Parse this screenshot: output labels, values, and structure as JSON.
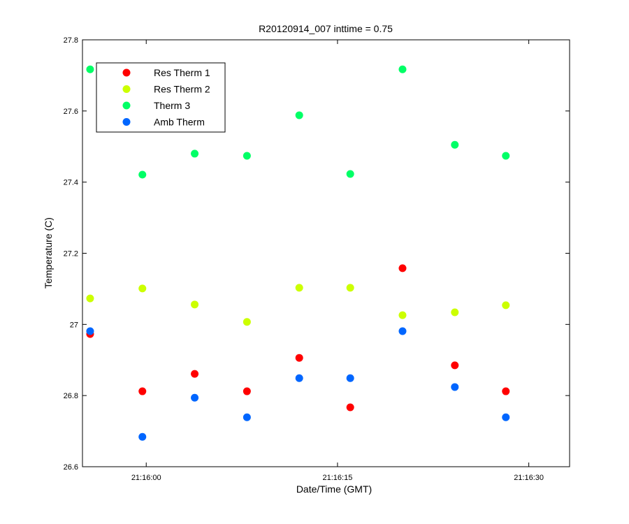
{
  "chart_data": {
    "type": "scatter",
    "title": "R20120914_007 inttime = 0.75",
    "x_label": "Date/Time (GMT)",
    "y_label": "Temperature (C)",
    "x": [
      "21:15:55.6",
      "21:15:59.7",
      "21:16:03.8",
      "21:16:07.9",
      "21:16:12.0",
      "21:16:16.0",
      "21:16:20.1",
      "21:16:24.2",
      "21:16:28.2"
    ],
    "series": [
      {
        "name": "Res Therm 1",
        "color": "#ff0000",
        "values": [
          26.973,
          26.812,
          26.861,
          26.812,
          26.906,
          26.767,
          27.158,
          26.885,
          26.812
        ]
      },
      {
        "name": "Res Therm 2",
        "color": "#ccff00",
        "values": [
          27.073,
          27.101,
          27.056,
          27.007,
          27.103,
          27.103,
          27.026,
          27.034,
          27.054
        ]
      },
      {
        "name": "Therm 3",
        "color": "#00ff66",
        "values": [
          27.717,
          27.421,
          27.48,
          27.474,
          27.588,
          27.423,
          27.717,
          27.505,
          27.474
        ]
      },
      {
        "name": "Amb Therm",
        "color": "#0066ff",
        "values": [
          26.981,
          26.684,
          26.794,
          26.739,
          26.849,
          26.849,
          26.981,
          26.824,
          26.739
        ]
      }
    ],
    "xlim": [
      "21:15:55.0",
      "21:16:33.2"
    ],
    "xticks": [
      "21:16:00",
      "21:16:15",
      "21:16:30"
    ],
    "ylim": [
      26.6,
      27.8
    ],
    "yticks": [
      26.6,
      26.8,
      27,
      27.2,
      27.4,
      27.6,
      27.8
    ],
    "grid": false,
    "legend": "upper-left"
  }
}
